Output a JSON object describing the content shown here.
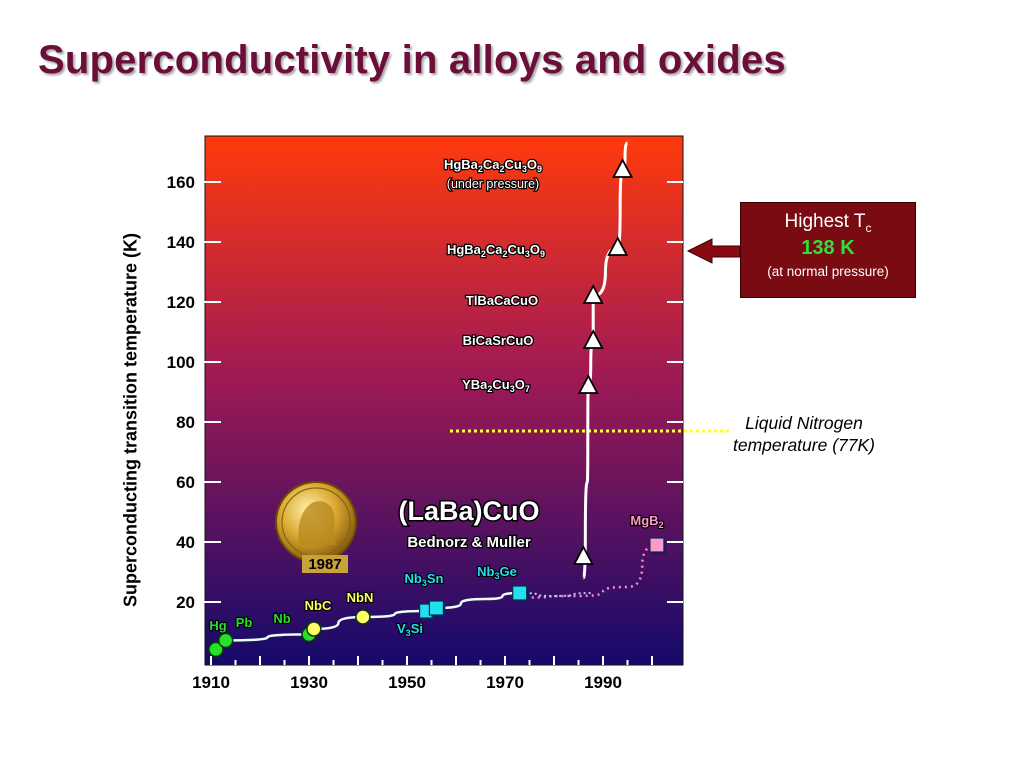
{
  "title": "Superconductivity in alloys and oxides",
  "callout": {
    "highest_prefix": "Highest T",
    "highest_sub": "c",
    "value": "138 K",
    "note": "(at normal pressure)"
  },
  "nitrogen_note": {
    "line1": "Liquid Nitrogen",
    "line2": "temperature (77K)"
  },
  "medal": {
    "year": "1987",
    "compound": "(LaBa)CuO",
    "discoverers": "Bednorz & Muller"
  },
  "colors": {
    "title": "#6b0f3a",
    "callout_bg": "#7a0b12",
    "callout_value": "#2fe03a",
    "plot_top": "#ff3a0c",
    "plot_bottom": "#140a6a",
    "nitrogen_line": "#ffff33"
  },
  "chart_data": {
    "type": "scatter",
    "title": "Superconductivity in alloys and oxides",
    "xlabel": "",
    "ylabel": "Superconducting transition temperature (K)",
    "xlim": [
      1910,
      2004
    ],
    "ylim": [
      0,
      176
    ],
    "x_ticks": [
      1910,
      1930,
      1950,
      1970,
      1990
    ],
    "y_ticks": [
      20,
      40,
      60,
      80,
      100,
      120,
      140,
      160
    ],
    "reference_line": {
      "label": "Liquid Nitrogen temperature (77K)",
      "y": 77
    },
    "series": [
      {
        "marker": "circle",
        "points": [
          {
            "label": "Hg",
            "x": 1911,
            "y": 4.2,
            "color": "#27e02a"
          },
          {
            "label": "Pb",
            "x": 1913,
            "y": 7.2,
            "color": "#27e02a"
          },
          {
            "label": "Nb",
            "x": 1930,
            "y": 9.2,
            "color": "#27e02a"
          },
          {
            "label": "NbC",
            "x": 1931,
            "y": 11,
            "color": "#ffff66"
          },
          {
            "label": "NbN",
            "x": 1941,
            "y": 15,
            "color": "#ffff66"
          }
        ]
      },
      {
        "marker": "square",
        "points": [
          {
            "label": "V3Si",
            "x": 1954,
            "y": 17,
            "color": "#22e0ee"
          },
          {
            "label": "Nb3Sn",
            "x": 1956,
            "y": 18,
            "color": "#22e0ee"
          },
          {
            "label": "Nb3Ge",
            "x": 1973,
            "y": 23,
            "color": "#22e0ee"
          },
          {
            "label": "MgB2",
            "x": 2001,
            "y": 39,
            "color": "#ff99cc"
          }
        ]
      },
      {
        "marker": "triangle",
        "points": [
          {
            "label": "(LaBa)CuO",
            "x": 1986,
            "y": 35,
            "color": "#ffffff"
          },
          {
            "label": "YBa2Cu3O7",
            "x": 1987,
            "y": 92,
            "color": "#ffffff"
          },
          {
            "label": "BiCaSrCuO",
            "x": 1988,
            "y": 107,
            "color": "#ffffff"
          },
          {
            "label": "TlBaCaCuO",
            "x": 1988,
            "y": 122,
            "color": "#ffffff"
          },
          {
            "label": "HgBa2Ca2Cu3O9",
            "x": 1993,
            "y": 138,
            "color": "#ffffff"
          },
          {
            "label": "HgBa2Ca2Cu3O9 (under pressure)",
            "x": 1994,
            "y": 164,
            "color": "#ffffff"
          }
        ]
      }
    ]
  }
}
